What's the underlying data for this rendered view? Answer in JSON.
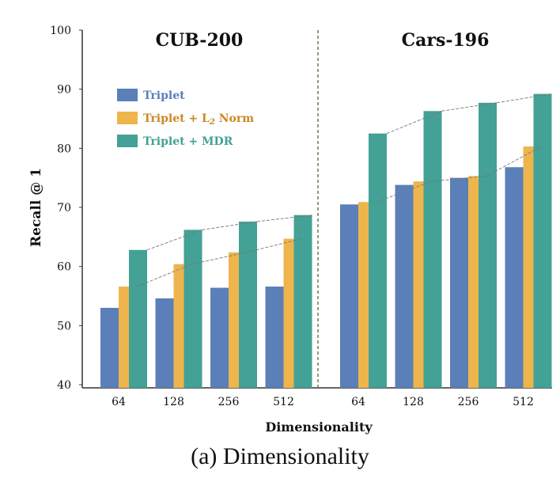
{
  "caption": "(a) Dimensionality",
  "chart_data": {
    "type": "bar",
    "ylabel": "Recall @ 1",
    "xlabel": "Dimensionality",
    "ylim": [
      40,
      100
    ],
    "yticks": [
      40,
      50,
      60,
      70,
      80,
      90,
      100
    ],
    "legend": {
      "placement": "upper-left",
      "entries": [
        {
          "prefix": "Triplet",
          "sub": "",
          "suffix": ""
        },
        {
          "prefix": "Triplet + L",
          "sub": "2",
          "suffix": " Norm"
        },
        {
          "prefix": "Triplet + MDR",
          "sub": "",
          "suffix": ""
        }
      ]
    },
    "colors": [
      "#5b7fb9",
      "#eeb54d",
      "#43a196"
    ],
    "text_colors": [
      "#5b7fb9",
      "#c98a24",
      "#43a196"
    ],
    "series_names": [
      "Triplet",
      "Triplet + L2 Norm",
      "Triplet + MDR"
    ],
    "panels": [
      {
        "title": "CUB-200",
        "categories": [
          "64",
          "128",
          "256",
          "512"
        ],
        "series": [
          {
            "name": "Triplet",
            "values": [
              53.0,
              54.6,
              56.4,
              56.6
            ]
          },
          {
            "name": "Triplet + L2 Norm",
            "values": [
              56.6,
              60.4,
              62.4,
              64.7
            ]
          },
          {
            "name": "Triplet + MDR",
            "values": [
              62.8,
              66.2,
              67.6,
              68.7
            ]
          }
        ]
      },
      {
        "title": "Cars-196",
        "categories": [
          "64",
          "128",
          "256",
          "512"
        ],
        "series": [
          {
            "name": "Triplet",
            "values": [
              70.5,
              73.8,
              75.0,
              76.8
            ]
          },
          {
            "name": "Triplet + L2 Norm",
            "values": [
              70.9,
              74.4,
              75.3,
              80.3
            ]
          },
          {
            "name": "Triplet + MDR",
            "values": [
              82.5,
              86.3,
              87.7,
              89.2
            ]
          }
        ]
      }
    ]
  }
}
